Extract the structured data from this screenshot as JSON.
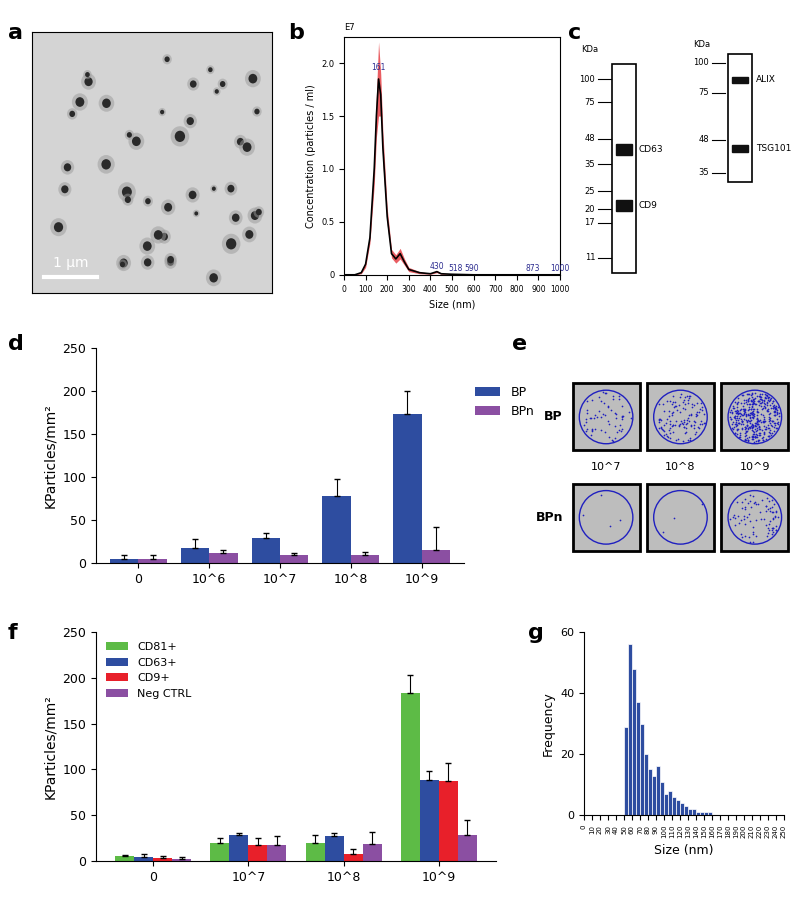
{
  "panel_labels": [
    "a",
    "b",
    "c",
    "d",
    "e",
    "f",
    "g"
  ],
  "image_a": {
    "scale_bar": "1 µm"
  },
  "blots": {
    "unit": "KDa",
    "gels": [
      {
        "markers": [
          100,
          75,
          48,
          35,
          25,
          20,
          17,
          11
        ],
        "bands": [
          {
            "label": "CD63",
            "kda": 42
          },
          {
            "label": "CD9",
            "kda": 21
          }
        ]
      },
      {
        "markers": [
          100,
          75,
          48,
          35
        ],
        "bands": [
          {
            "label": "ALIX",
            "kda": 85
          },
          {
            "label": "TSG101",
            "kda": 44
          }
        ]
      }
    ]
  },
  "image_e": {
    "rows": [
      "BP",
      "BPn"
    ],
    "columns": [
      "10^7",
      "10^8",
      "10^9"
    ]
  },
  "chart_data": [
    {
      "type": "line",
      "x_label": "Size (nm)",
      "y_label": "Concentration (particles / ml)",
      "y_offset_text": "E7",
      "x": [
        0,
        50,
        80,
        100,
        120,
        140,
        150,
        160,
        170,
        180,
        200,
        220,
        240,
        260,
        280,
        300,
        350,
        400,
        430,
        450,
        500,
        600,
        700,
        800,
        900,
        1000
      ],
      "values": [
        0,
        0,
        0.02,
        0.1,
        0.35,
        1.0,
        1.5,
        1.85,
        1.7,
        1.2,
        0.55,
        0.2,
        0.15,
        0.2,
        0.12,
        0.05,
        0.02,
        0.01,
        0.03,
        0.01,
        0.005,
        0,
        0,
        0,
        0,
        0
      ],
      "error": [
        0,
        0,
        0.01,
        0.03,
        0.05,
        0.15,
        0.2,
        0.35,
        0.2,
        0.15,
        0.08,
        0.04,
        0.04,
        0.05,
        0.03,
        0.02,
        0.01,
        0.005,
        0.01,
        0.005,
        0,
        0,
        0,
        0,
        0,
        0
      ],
      "color": "#000000",
      "xlim": [
        0,
        1000
      ],
      "xticks": [
        0,
        100,
        200,
        300,
        400,
        500,
        600,
        700,
        800,
        900,
        1000
      ],
      "ylim": [
        0,
        2.25
      ],
      "yticks": [
        0,
        0.5,
        1.0,
        1.5,
        2.0
      ],
      "annotations": [
        {
          "text": "161",
          "x": 161,
          "y": 1.92
        },
        {
          "text": "430",
          "x": 430,
          "y": 0.04
        },
        {
          "text": "518",
          "x": 518,
          "y": 0.02
        },
        {
          "text": "590",
          "x": 590,
          "y": 0.02
        },
        {
          "text": "873",
          "x": 873,
          "y": 0.02
        },
        {
          "text": "1000",
          "x": 1000,
          "y": 0.02
        }
      ]
    },
    {
      "type": "bar",
      "y_label": "KParticles/mm²",
      "categories": [
        "0",
        "10^6",
        "10^7",
        "10^8",
        "10^9"
      ],
      "series": [
        {
          "name": "BP",
          "color": "#2e4da0",
          "values": [
            5,
            18,
            30,
            78,
            173
          ],
          "errors": [
            5,
            10,
            5,
            20,
            27
          ]
        },
        {
          "name": "BPn",
          "color": "#8b4fa2",
          "values": [
            5,
            12,
            10,
            10,
            15
          ],
          "errors": [
            5,
            3,
            2,
            3,
            27
          ]
        }
      ],
      "ylim": [
        0,
        250
      ],
      "yticks": [
        0,
        50,
        100,
        150,
        200,
        250
      ],
      "legend": "right"
    },
    {
      "type": "bar",
      "y_label": "KParticles/mm²",
      "categories": [
        "0",
        "10^7",
        "10^8",
        "10^9"
      ],
      "series": [
        {
          "name": "CD81+",
          "color": "#5dbb46",
          "values": [
            5,
            20,
            20,
            183
          ],
          "errors": [
            2,
            5,
            8,
            20
          ]
        },
        {
          "name": "CD63+",
          "color": "#2e4da0",
          "values": [
            4,
            28,
            27,
            88
          ],
          "errors": [
            4,
            3,
            4,
            10
          ]
        },
        {
          "name": "CD9+",
          "color": "#e8202a",
          "values": [
            3,
            17,
            8,
            87
          ],
          "errors": [
            2,
            8,
            5,
            20
          ]
        },
        {
          "name": "Neg CTRL",
          "color": "#8b4fa2",
          "values": [
            2,
            17,
            19,
            28
          ],
          "errors": [
            2,
            10,
            13,
            17
          ]
        }
      ],
      "ylim": [
        0,
        250
      ],
      "yticks": [
        0,
        50,
        100,
        150,
        200,
        250
      ],
      "legend": "upper left"
    },
    {
      "type": "histogram",
      "x_label": "Size (nm)",
      "y_label": "Frequency",
      "bins": [
        0,
        5,
        10,
        15,
        20,
        25,
        30,
        35,
        40,
        45,
        50,
        55,
        60,
        65,
        70,
        75,
        80,
        85,
        90,
        95,
        100,
        105,
        110,
        115,
        120,
        125,
        130,
        135,
        140,
        145,
        150,
        155,
        160,
        165,
        170,
        175,
        180,
        185,
        190,
        195,
        200,
        205,
        210,
        215,
        220,
        225,
        230,
        235,
        240,
        245,
        250
      ],
      "counts": [
        0,
        0,
        0,
        0,
        0,
        0,
        0,
        0,
        0,
        0,
        29,
        56,
        48,
        37,
        30,
        20,
        15,
        13,
        16,
        11,
        7,
        8,
        6,
        5,
        4,
        3,
        2,
        2,
        1,
        1,
        1,
        1,
        0,
        0,
        0,
        0,
        0,
        0,
        0,
        0,
        0,
        0,
        0,
        0,
        0,
        0,
        0,
        0,
        0,
        0
      ],
      "color": "#2e4da0",
      "xlim": [
        0,
        250
      ],
      "xticks": [
        0,
        10,
        20,
        30,
        40,
        50,
        60,
        70,
        80,
        90,
        100,
        110,
        120,
        130,
        140,
        150,
        160,
        170,
        180,
        190,
        200,
        210,
        220,
        230,
        240,
        250
      ],
      "ylim": [
        0,
        60
      ],
      "yticks": [
        0,
        20,
        40,
        60
      ]
    }
  ]
}
